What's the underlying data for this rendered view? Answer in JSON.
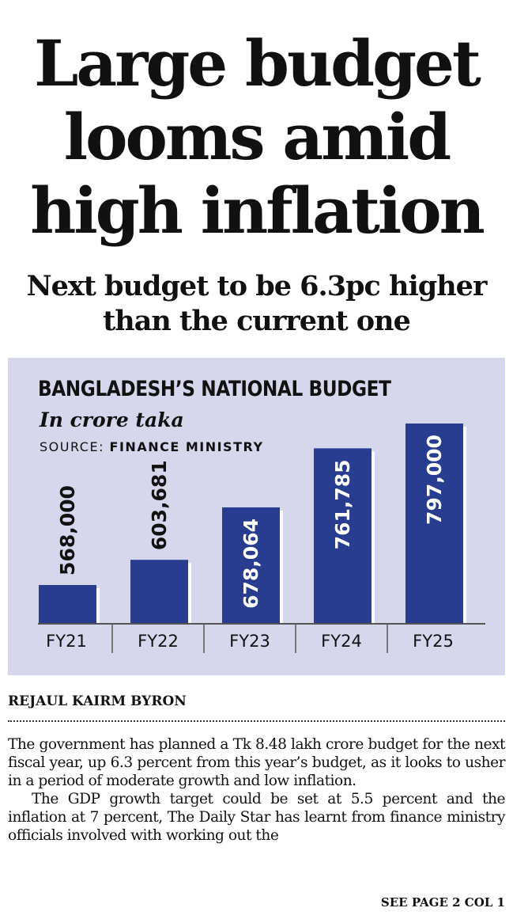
{
  "headline": {
    "lines": [
      "Large budget",
      "looms amid",
      "high inflation"
    ]
  },
  "subheadline": {
    "lines": [
      "Next budget to be 6.3pc higher",
      "than the current one"
    ]
  },
  "chart": {
    "title": "BANGLADESH’S NATIONAL BUDGET",
    "unit": "In crore taka",
    "source_label": "SOURCE:",
    "source_name": "FINANCE MINISTRY",
    "bar_color": "#283d8f",
    "background_color": "#d6d6ec"
  },
  "chart_data": {
    "type": "bar",
    "title": "BANGLADESH’S NATIONAL BUDGET",
    "subtitle": "In crore taka",
    "categories": [
      "FY21",
      "FY22",
      "FY23",
      "FY24",
      "FY25"
    ],
    "values": [
      568000,
      603681,
      678064,
      761785,
      797000
    ],
    "value_labels": [
      "568,000",
      "603,681",
      "678,064",
      "761,785",
      "797,000"
    ],
    "xlabel": "",
    "ylabel": "",
    "grid": false,
    "legend": "none"
  },
  "byline": "REJAUL KAIRM BYRON",
  "body": {
    "paragraphs": [
      "The government has planned a Tk 8.48 lakh crore budget for the next fiscal year, up 6.3 percent from this year’s budget, as it looks to usher in a period of moderate growth and low inflation.",
      "The GDP growth target could be set at 5.5 percent and the inflation at 7 percent, The Daily Star has learnt from finance ministry officials involved with working out the"
    ]
  },
  "jump_line": "SEE PAGE 2 COL 1"
}
